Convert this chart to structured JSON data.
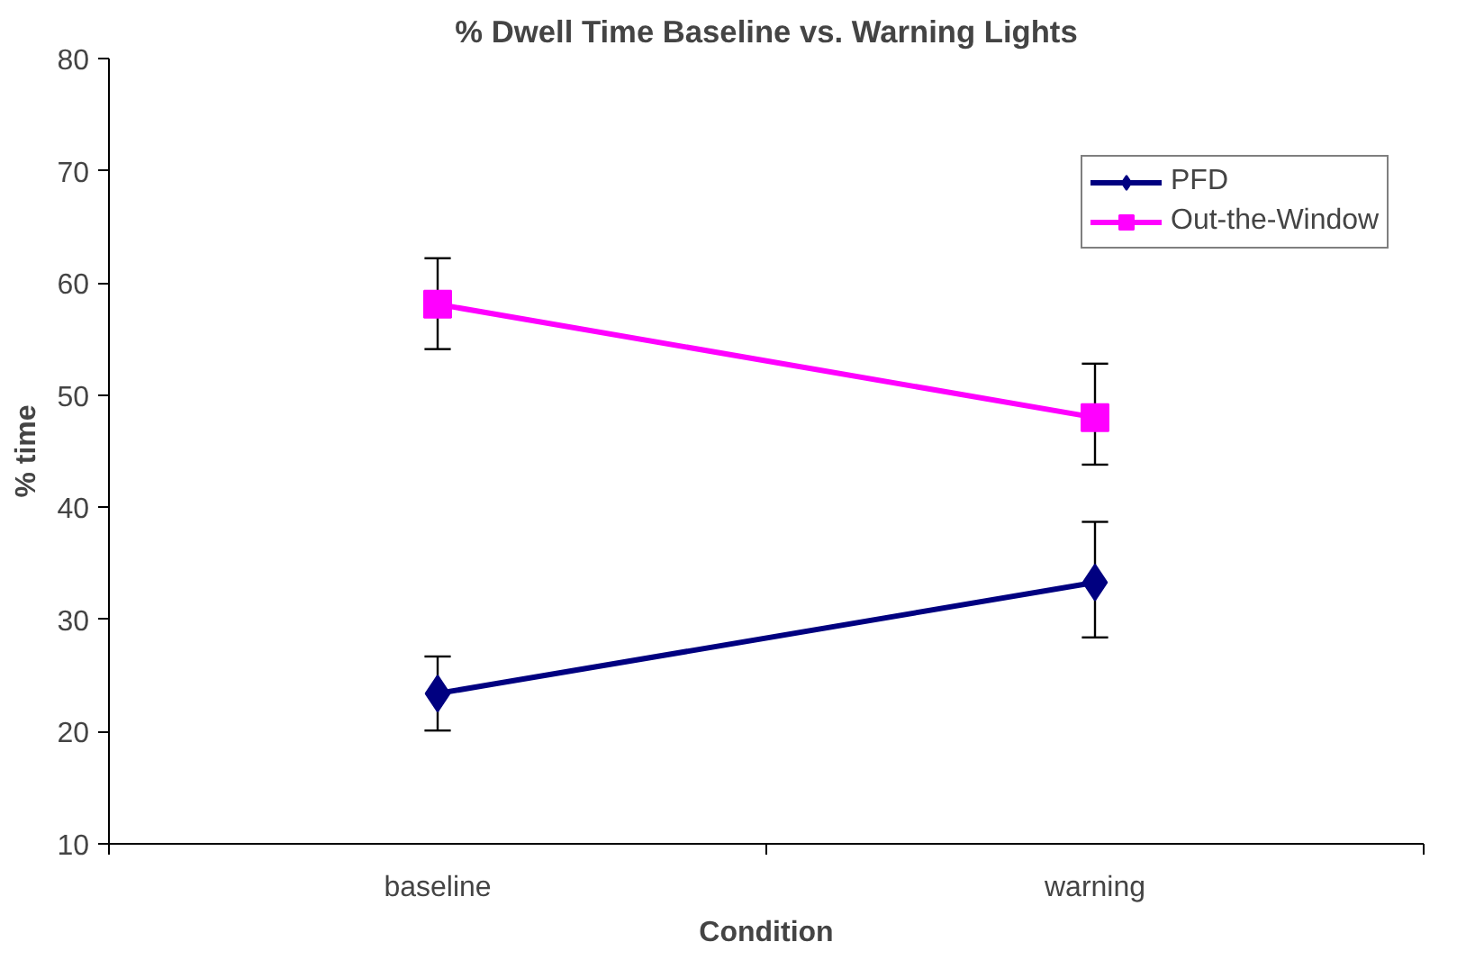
{
  "chart_data": {
    "type": "line",
    "title": "% Dwell Time Baseline vs. Warning Lights",
    "xlabel": "Condition",
    "ylabel": "% time",
    "categories": [
      "baseline",
      "warning"
    ],
    "series": [
      {
        "name": "PFD",
        "color": "#000080",
        "marker": "diamond",
        "values": [
          23.4,
          33.3
        ],
        "errors": [
          [
            20.1,
            26.7
          ],
          [
            28.4,
            38.7
          ]
        ]
      },
      {
        "name": "Out-the-Window",
        "color": "#ff00ff",
        "marker": "square",
        "values": [
          58.1,
          48.0
        ],
        "errors": [
          [
            54.1,
            62.2
          ],
          [
            43.8,
            52.8
          ]
        ]
      }
    ],
    "ylim": [
      10,
      80
    ],
    "yticks": [
      10,
      20,
      30,
      40,
      50,
      60,
      70,
      80
    ],
    "grid": false,
    "legend": "top right",
    "line_style": "solid"
  }
}
